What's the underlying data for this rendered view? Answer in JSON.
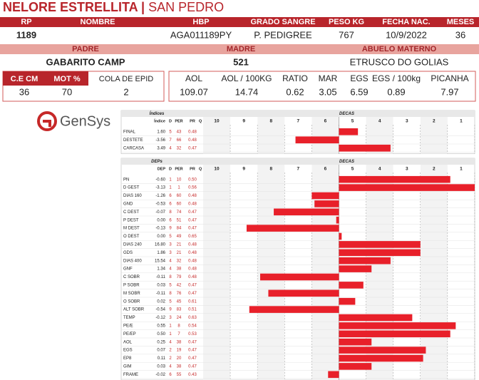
{
  "header": {
    "title": "NELORE ESTRELLITA",
    "separator": "|",
    "subtitle": "SAN PEDRO"
  },
  "info": [
    {
      "label": "RP",
      "value": "1189"
    },
    {
      "label": "NOMBRE"
    },
    {
      "label": "HBP",
      "value": "AGA011189PY"
    },
    {
      "label": "GRADO SANGRE",
      "value": "P. PEDIGREE"
    },
    {
      "label": "PESO KG",
      "value": "767"
    },
    {
      "label": "FECHA NAC.",
      "value": "10/9/2022"
    },
    {
      "label": "MESES",
      "value": "36"
    }
  ],
  "parents": [
    {
      "label": "PADRE",
      "value": "GABARITO CAMP"
    },
    {
      "label": "MADRE",
      "value": "521"
    },
    {
      "label": "ABUELO MATERNO",
      "value": "ETRUSCO DO GOLIAS"
    }
  ],
  "measures_left": [
    {
      "label": "C.E CM",
      "value": "36"
    },
    {
      "label": "MOT %",
      "value": "70"
    },
    {
      "label": "COLA DE EPID",
      "value": "2"
    }
  ],
  "measures_right": [
    {
      "label": "AOL",
      "value": "109.07"
    },
    {
      "label": "AOL / 100KG",
      "value": "14.74"
    },
    {
      "label": "RATIO",
      "value": "0.62"
    },
    {
      "label": "MAR",
      "value": "3.05"
    },
    {
      "label": "EGS",
      "value": "6.59"
    },
    {
      "label": "EGS / 100kg",
      "value": "0.89"
    },
    {
      "label": "PICANHA",
      "value": "7.97"
    }
  ],
  "brand": "GenSys",
  "deca_scale": {
    "lim": [
      10.5,
      0.5
    ],
    "ticks": [
      10,
      9,
      8,
      7,
      6,
      5,
      4,
      3,
      2,
      1
    ]
  },
  "indices": {
    "title": "Índices",
    "decas_title": "DECAS",
    "columns": [
      "Índice",
      "D",
      "PER",
      "PR",
      "Q"
    ],
    "rows": [
      {
        "label": "FINAL",
        "value": "1.60",
        "d": 5,
        "per": 43,
        "pr": "0.48",
        "deca": 4.8
      },
      {
        "label": "DESTETE",
        "value": "-3.56",
        "d": 7,
        "per": 66,
        "pr": "0.48",
        "deca": 7.1
      },
      {
        "label": "CARCASA",
        "value": "3.49",
        "d": 4,
        "per": 32,
        "pr": "0.47",
        "deca": 3.6
      }
    ]
  },
  "deps": {
    "title": "DEPs",
    "decas_title": "DECAS",
    "columns": [
      "DEP",
      "D",
      "PER",
      "PR",
      "Q"
    ],
    "rows": [
      {
        "label": "PN",
        "value": "-0.60",
        "d": 1,
        "per": 10,
        "pr": "0.50",
        "deca": 1.4
      },
      {
        "label": "D GEST",
        "value": "-3.13",
        "d": 1,
        "per": 1,
        "pr": "0.56",
        "deca": 0.5
      },
      {
        "label": "DIAS 160",
        "value": "-1.26",
        "d": 6,
        "per": 60,
        "pr": "0.48",
        "deca": 6.5
      },
      {
        "label": "GND",
        "value": "-0.53",
        "d": 6,
        "per": 60,
        "pr": "0.48",
        "deca": 6.4
      },
      {
        "label": "C DEST",
        "value": "-0.07",
        "d": 8,
        "per": 74,
        "pr": "0.47",
        "deca": 7.9
      },
      {
        "label": "P DEST",
        "value": "0.00",
        "d": 6,
        "per": 51,
        "pr": "0.47",
        "deca": 5.6
      },
      {
        "label": "M DEST",
        "value": "-0.13",
        "d": 9,
        "per": 84,
        "pr": "0.47",
        "deca": 8.9
      },
      {
        "label": "O DEST",
        "value": "0.00",
        "d": 5,
        "per": 49,
        "pr": "0.65",
        "deca": 5.4
      },
      {
        "label": "DIAS 240",
        "value": "16.80",
        "d": 3,
        "per": 21,
        "pr": "0.48",
        "deca": 2.5
      },
      {
        "label": "GDS",
        "value": "1.86",
        "d": 3,
        "per": 21,
        "pr": "0.48",
        "deca": 2.5
      },
      {
        "label": "DIAS 400",
        "value": "15.54",
        "d": 4,
        "per": 32,
        "pr": "0.48",
        "deca": 3.6
      },
      {
        "label": "GNF",
        "value": "1.34",
        "d": 4,
        "per": 38,
        "pr": "0.48",
        "deca": 4.3
      },
      {
        "label": "C SOBR",
        "value": "-0.11",
        "d": 8,
        "per": 79,
        "pr": "0.48",
        "deca": 8.4
      },
      {
        "label": "P SOBR",
        "value": "0.03",
        "d": 5,
        "per": 42,
        "pr": "0.47",
        "deca": 4.6
      },
      {
        "label": "M SOBR",
        "value": "-0.11",
        "d": 8,
        "per": 76,
        "pr": "0.47",
        "deca": 8.1
      },
      {
        "label": "O SOBR",
        "value": "0.02",
        "d": 5,
        "per": 45,
        "pr": "0.61",
        "deca": 4.9
      },
      {
        "label": "ALT SOBR",
        "value": "-0.54",
        "d": 9,
        "per": 83,
        "pr": "0.51",
        "deca": 8.8
      },
      {
        "label": "TEMP",
        "value": "-0.12",
        "d": 3,
        "per": 24,
        "pr": "0.63",
        "deca": 2.8
      },
      {
        "label": "PE/E",
        "value": "0.55",
        "d": 1,
        "per": 8,
        "pr": "0.54",
        "deca": 1.2
      },
      {
        "label": "PE/EP",
        "value": "0.50",
        "d": 1,
        "per": 7,
        "pr": "0.53",
        "deca": 1.4
      },
      {
        "label": "AOL",
        "value": "0.25",
        "d": 4,
        "per": 38,
        "pr": "0.47",
        "deca": 4.3
      },
      {
        "label": "EGS",
        "value": "0.07",
        "d": 2,
        "per": 19,
        "pr": "0.47",
        "deca": 2.3
      },
      {
        "label": "EP8",
        "value": "0.11",
        "d": 2,
        "per": 20,
        "pr": "0.47",
        "deca": 2.4
      },
      {
        "label": "GIM",
        "value": "0.03",
        "d": 4,
        "per": 38,
        "pr": "0.47",
        "deca": 4.3
      },
      {
        "label": "FRAME",
        "value": "-0.02",
        "d": 6,
        "per": 55,
        "pr": "0.43",
        "deca": 5.9
      }
    ]
  }
}
